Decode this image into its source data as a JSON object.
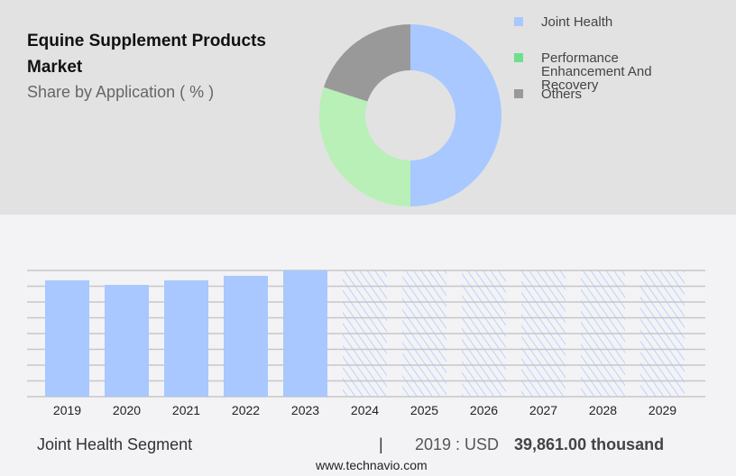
{
  "header": {
    "title": "Equine Supplement Products Market",
    "subtitle": "Share by Application ( % )"
  },
  "chart_data": [
    {
      "type": "pie",
      "donut": true,
      "legend": [
        "Joint Health",
        "Performance Enhancement And Recovery",
        "Others"
      ],
      "values": [
        50,
        30,
        20
      ],
      "colors": [
        "#a8c8ff",
        "#b8f0b8",
        "#999999"
      ],
      "legend_colors": [
        "#a8c8ff",
        "#6ee08c",
        "#999999"
      ],
      "legend_placement": "right"
    },
    {
      "type": "bar",
      "categories": [
        "2019",
        "2020",
        "2021",
        "2022",
        "2023",
        "2024",
        "2025",
        "2026",
        "2027",
        "2028",
        "2029"
      ],
      "values": [
        39861,
        38316,
        39861,
        41406,
        43257,
        null,
        null,
        null,
        null,
        null,
        null
      ],
      "forecast_from": "2024",
      "color": "#a8c8ff",
      "grid": true,
      "ylim": [
        0,
        43257
      ]
    }
  ],
  "footer": {
    "segment": "Joint Health Segment",
    "separator": "|",
    "year_label": "2019 : USD",
    "value": "39,861.00 thousand",
    "source": "www.technavio.com"
  }
}
